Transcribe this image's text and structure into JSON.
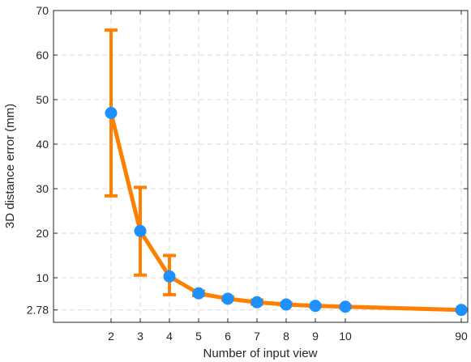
{
  "chart_data": {
    "type": "line",
    "title": "",
    "xlabel": "Number of input view",
    "ylabel": "3D distance error (mm)",
    "x_ticks": [
      "2",
      "3",
      "4",
      "5",
      "6",
      "7",
      "8",
      "9",
      "10",
      "90"
    ],
    "y_ticks": [
      2.78,
      10,
      20,
      30,
      40,
      50,
      60,
      70
    ],
    "y_tick_labels": [
      "2.78",
      "10",
      "20",
      "30",
      "40",
      "50",
      "60",
      "70"
    ],
    "ylim": [
      0,
      70
    ],
    "grid": true,
    "legend": "none",
    "series": [
      {
        "x": [
          "2",
          "3",
          "4",
          "5",
          "6",
          "7",
          "8",
          "9",
          "10",
          "90"
        ],
        "values": [
          47.0,
          20.5,
          10.3,
          6.5,
          5.3,
          4.5,
          4.0,
          3.7,
          3.5,
          2.78
        ],
        "error_low": [
          28.4,
          10.6,
          6.2,
          6.0,
          5.0,
          4.1,
          3.8,
          3.5,
          3.3,
          2.7
        ],
        "error_high": [
          65.6,
          30.3,
          15.0,
          7.0,
          5.7,
          5.0,
          4.3,
          3.9,
          3.7,
          2.9
        ]
      }
    ],
    "colors": {
      "line": "#ff8000",
      "marker": "#1e90ff",
      "grid": "#dcdcdc",
      "axis": "#262626"
    }
  }
}
